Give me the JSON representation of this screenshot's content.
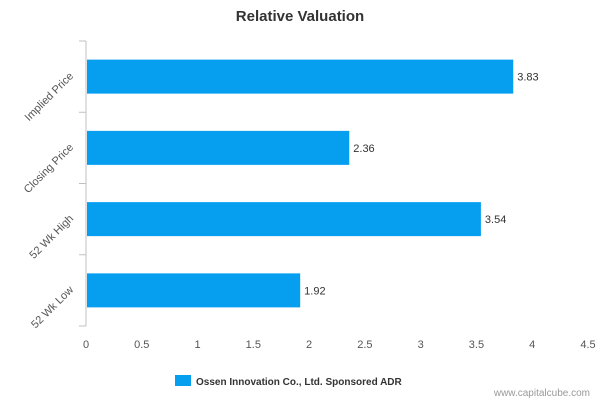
{
  "chart_data": {
    "type": "bar",
    "orientation": "horizontal",
    "title": "Relative Valuation",
    "categories": [
      "Implied Price",
      "Closing Price",
      "52 Wk High",
      "52 Wk Low"
    ],
    "series": [
      {
        "name": "Ossen Innovation Co., Ltd. Sponsored ADR",
        "values": [
          3.83,
          2.36,
          3.54,
          1.92
        ],
        "labels": [
          "3.83",
          "2.36",
          "3.54",
          "1.92"
        ],
        "color": "#069ff0"
      }
    ],
    "xlim": [
      0,
      4.5
    ],
    "xticks": [
      0,
      0.5,
      1,
      1.5,
      2,
      2.5,
      3,
      3.5,
      4,
      4.5
    ],
    "xtick_labels": [
      "0",
      "0.5",
      "1",
      "1.5",
      "2",
      "2.5",
      "3",
      "3.5",
      "4",
      "4.5"
    ],
    "grid": false,
    "legend_position": "bottom"
  },
  "source_text": "www.capitalcube.com"
}
